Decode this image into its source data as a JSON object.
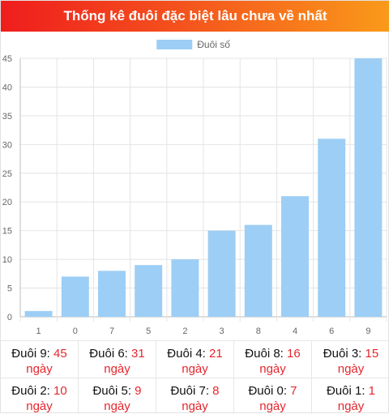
{
  "header": {
    "title": "Thống kê đuôi đặc biệt lâu chưa về nhất"
  },
  "colors": {
    "bar": "#9dcef5",
    "header_start": "#ef1d1d",
    "header_end": "#fa9a1a",
    "value_text": "#e5262d"
  },
  "chart_data": {
    "type": "bar",
    "title": "",
    "xlabel": "",
    "ylabel": "",
    "legend": {
      "position": "top",
      "label": "Đuôi số"
    },
    "grid": true,
    "ylim": [
      0,
      45
    ],
    "yticks": [
      0,
      5,
      10,
      15,
      20,
      25,
      30,
      35,
      40,
      45
    ],
    "categories": [
      "1",
      "0",
      "7",
      "5",
      "2",
      "3",
      "8",
      "4",
      "6",
      "9"
    ],
    "series": [
      {
        "name": "Đuôi số",
        "values": [
          1,
          7,
          8,
          9,
          10,
          15,
          16,
          21,
          31,
          45
        ]
      }
    ]
  },
  "stats": [
    {
      "label": "Đuôi 9:",
      "value": "45",
      "unit": "ngày"
    },
    {
      "label": "Đuôi 6:",
      "value": "31",
      "unit": "ngày"
    },
    {
      "label": "Đuôi 4:",
      "value": "21",
      "unit": "ngày"
    },
    {
      "label": "Đuôi 8:",
      "value": "16",
      "unit": "ngày"
    },
    {
      "label": "Đuôi 3:",
      "value": "15",
      "unit": "ngày"
    },
    {
      "label": "Đuôi 2:",
      "value": "10",
      "unit": "ngày"
    },
    {
      "label": "Đuôi 5:",
      "value": "9",
      "unit": "ngày"
    },
    {
      "label": "Đuôi 7:",
      "value": "8",
      "unit": "ngày"
    },
    {
      "label": "Đuôi 0:",
      "value": "7",
      "unit": "ngày"
    },
    {
      "label": "Đuôi 1:",
      "value": "1",
      "unit": "ngày"
    }
  ]
}
